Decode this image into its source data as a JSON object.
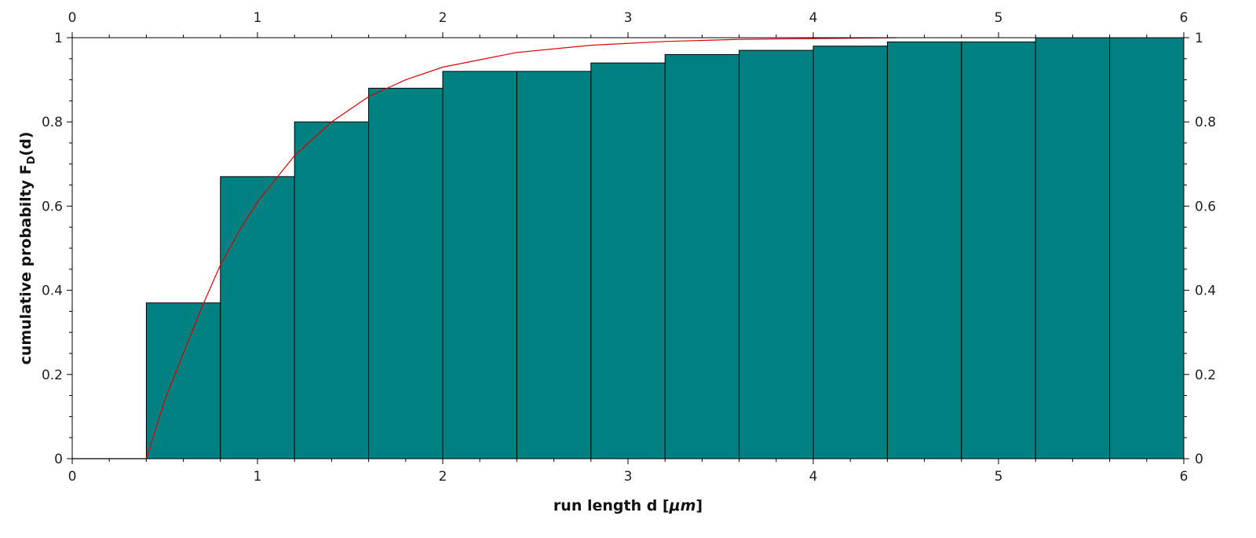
{
  "chart_data": {
    "type": "bar",
    "title": "",
    "xlabel": {
      "prefix": "run length d [",
      "unit": "μm",
      "suffix": "]"
    },
    "ylabel": {
      "prefix": "cumulative probabilty F",
      "subscript": "D",
      "suffix": "(d)"
    },
    "xlim": [
      0,
      6
    ],
    "ylim": [
      0,
      1
    ],
    "x_ticks": [
      "0",
      "1",
      "2",
      "3",
      "4",
      "5",
      "6"
    ],
    "y_ticks": [
      "0",
      "0.2",
      "0.4",
      "0.6",
      "0.8",
      "1"
    ],
    "grid": false,
    "bin_edges": [
      0.4,
      0.8,
      1.2,
      1.6,
      2.0,
      2.4,
      2.8,
      3.2,
      3.6,
      4.0,
      4.4,
      4.8,
      5.2,
      5.6,
      6.0
    ],
    "values": [
      0.37,
      0.67,
      0.8,
      0.88,
      0.92,
      0.92,
      0.94,
      0.96,
      0.97,
      0.98,
      0.99,
      0.99,
      1.0,
      1.0
    ],
    "curve": {
      "type": "line",
      "x": [
        0.4,
        0.5,
        0.6,
        0.7,
        0.8,
        0.9,
        1.0,
        1.2,
        1.4,
        1.6,
        1.8,
        2.0,
        2.4,
        2.8,
        3.2,
        3.6,
        4.0,
        4.45
      ],
      "y": [
        0.0,
        0.14,
        0.25,
        0.36,
        0.46,
        0.54,
        0.61,
        0.72,
        0.8,
        0.86,
        0.9,
        0.93,
        0.965,
        0.982,
        0.991,
        0.996,
        0.998,
        1.0
      ]
    },
    "baseline_segment": {
      "x": [
        0,
        0.4
      ],
      "y": [
        0,
        0
      ]
    },
    "colors": {
      "bar_fill": "#008080",
      "bar_edge": "#000000",
      "curve": "#e00000",
      "axis": "#000000"
    }
  }
}
